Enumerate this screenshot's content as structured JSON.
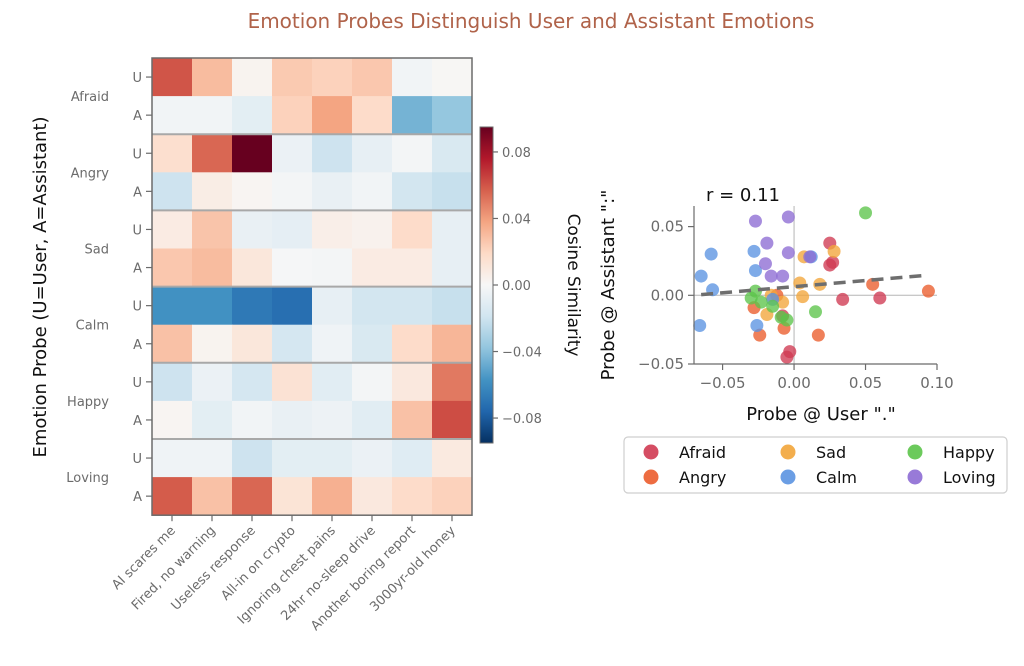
{
  "title": "Emotion Probes Distinguish User and Assistant Emotions",
  "chart_data": [
    {
      "type": "heatmap",
      "title": "",
      "ylabel": "Emotion Probe (U=User, A=Assistant)",
      "xlabel": "",
      "x_categories": [
        "AI scares me",
        "Fired, no warning",
        "Useless response",
        "All-in on crypto",
        "Ignoring chest pains",
        "24hr no-sleep drive",
        "Another boring report",
        "3000yr-old honey"
      ],
      "row_groups": [
        "Afraid",
        "Angry",
        "Sad",
        "Calm",
        "Happy",
        "Loving"
      ],
      "row_sublabels": [
        "U",
        "A"
      ],
      "values": [
        [
          0.06,
          0.03,
          0.003,
          0.025,
          0.022,
          0.026,
          -0.003,
          0.001
        ],
        [
          -0.003,
          -0.003,
          -0.01,
          0.022,
          0.038,
          0.018,
          -0.045,
          -0.037
        ],
        [
          0.016,
          0.055,
          0.095,
          -0.006,
          -0.02,
          -0.008,
          -0.002,
          -0.015
        ],
        [
          -0.02,
          0.007,
          0.002,
          -0.002,
          -0.007,
          -0.003,
          -0.018,
          -0.022
        ],
        [
          0.008,
          0.027,
          -0.007,
          -0.009,
          0.006,
          0.004,
          0.018,
          -0.008
        ],
        [
          0.026,
          0.03,
          0.011,
          -0.001,
          -0.002,
          0.008,
          0.008,
          -0.008
        ],
        [
          -0.058,
          -0.058,
          -0.068,
          -0.072,
          -0.008,
          -0.018,
          -0.018,
          -0.022
        ],
        [
          0.028,
          0.003,
          0.011,
          -0.017,
          -0.004,
          -0.015,
          0.018,
          0.032
        ],
        [
          -0.02,
          -0.006,
          -0.017,
          0.014,
          -0.011,
          -0.002,
          0.01,
          0.05
        ],
        [
          0.002,
          -0.01,
          -0.003,
          -0.007,
          -0.005,
          -0.011,
          0.028,
          0.062
        ],
        [
          -0.004,
          -0.004,
          -0.02,
          -0.01,
          -0.01,
          -0.006,
          -0.012,
          0.009
        ],
        [
          0.058,
          0.028,
          0.055,
          0.013,
          0.034,
          0.01,
          0.018,
          0.022
        ]
      ],
      "colorbar": {
        "label": "Cosine Similarity",
        "ticks": [
          0.08,
          0.04,
          0.0,
          -0.04,
          -0.08
        ],
        "tick_labels": [
          "0.08",
          "0.04",
          "0.00",
          "−0.04",
          "−0.08"
        ],
        "range": [
          -0.095,
          0.095
        ],
        "colormap": "RdBu_r"
      }
    },
    {
      "type": "scatter",
      "title": "",
      "annotation": "r = 0.11",
      "xlabel": "Probe @ User \".\"",
      "ylabel": "Probe @ Assistant \":\"",
      "xlim": [
        -0.07,
        0.1
      ],
      "ylim": [
        -0.05,
        0.065
      ],
      "x_ticks": [
        -0.05,
        0.0,
        0.05,
        0.1
      ],
      "x_tick_labels": [
        "−0.05",
        "0.00",
        "0.05",
        "0.10"
      ],
      "y_ticks": [
        0.05,
        0.0,
        -0.05
      ],
      "y_tick_labels": [
        "0.05",
        "0.00",
        "−0.05"
      ],
      "zero_lines": true,
      "trend_line": {
        "style": "dashed",
        "x": [
          -0.065,
          0.092
        ],
        "y": [
          0.0005,
          0.0145
        ]
      },
      "legend": {
        "placement": "below",
        "columns": 3
      },
      "series": [
        {
          "name": "Afraid",
          "color": "#d03a52",
          "points": [
            [
              0.025,
              0.038
            ],
            [
              0.027,
              0.024
            ],
            [
              0.025,
              0.022
            ],
            [
              0.034,
              -0.003
            ],
            [
              0.06,
              -0.002
            ],
            [
              -0.008,
              -0.015
            ],
            [
              -0.003,
              -0.041
            ],
            [
              -0.005,
              -0.045
            ]
          ]
        },
        {
          "name": "Angry",
          "color": "#eb5c2c",
          "points": [
            [
              0.055,
              0.008
            ],
            [
              0.094,
              0.003
            ],
            [
              -0.028,
              -0.009
            ],
            [
              -0.024,
              -0.029
            ],
            [
              -0.007,
              -0.024
            ],
            [
              0.017,
              -0.029
            ],
            [
              -0.012,
              0.0
            ]
          ]
        },
        {
          "name": "Sad",
          "color": "#f2a53a",
          "points": [
            [
              0.007,
              0.028
            ],
            [
              0.028,
              0.032
            ],
            [
              0.004,
              0.009
            ],
            [
              0.018,
              0.008
            ],
            [
              0.006,
              -0.001
            ],
            [
              -0.019,
              -0.014
            ],
            [
              -0.016,
              0.0
            ],
            [
              -0.008,
              -0.005
            ]
          ]
        },
        {
          "name": "Calm",
          "color": "#5b93e1",
          "points": [
            [
              -0.058,
              0.03
            ],
            [
              -0.065,
              0.014
            ],
            [
              -0.057,
              0.004
            ],
            [
              -0.066,
              -0.022
            ],
            [
              -0.028,
              0.032
            ],
            [
              -0.027,
              0.018
            ],
            [
              -0.026,
              -0.022
            ],
            [
              0.012,
              0.028
            ],
            [
              -0.015,
              -0.003
            ]
          ]
        },
        {
          "name": "Happy",
          "color": "#5cc44a",
          "points": [
            [
              0.05,
              0.06
            ],
            [
              0.015,
              -0.012
            ],
            [
              -0.027,
              0.003
            ],
            [
              -0.023,
              -0.005
            ],
            [
              -0.015,
              -0.008
            ],
            [
              -0.009,
              -0.016
            ],
            [
              -0.005,
              -0.018
            ],
            [
              -0.03,
              -0.002
            ]
          ]
        },
        {
          "name": "Loving",
          "color": "#8d6bd4",
          "points": [
            [
              -0.027,
              0.054
            ],
            [
              -0.004,
              0.057
            ],
            [
              -0.019,
              0.038
            ],
            [
              -0.004,
              0.031
            ],
            [
              -0.02,
              0.023
            ],
            [
              -0.016,
              0.014
            ],
            [
              -0.008,
              0.014
            ],
            [
              0.011,
              0.028
            ]
          ]
        }
      ]
    }
  ]
}
